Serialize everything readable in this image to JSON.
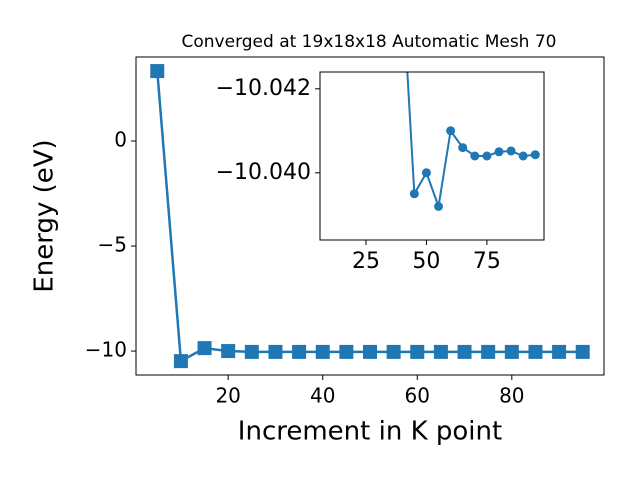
{
  "chart_data": [
    {
      "type": "line",
      "title": "Converged at 19x18x18 Automatic Mesh 70",
      "x_label": "Increment in K point",
      "y_label": "Energy (eV)",
      "x": [
        5,
        10,
        15,
        20,
        25,
        30,
        35,
        40,
        45,
        50,
        55,
        60,
        65,
        70,
        75,
        80,
        85,
        90,
        95
      ],
      "series": [
        {
          "color": "#1f77b4",
          "marker": "square",
          "values": [
            3.33,
            -10.48,
            -9.86,
            -10.0,
            -10.04,
            -10.04,
            -10.04,
            -10.04,
            -10.04,
            -10.04,
            -10.04,
            -10.04,
            -10.04,
            -10.04,
            -10.04,
            -10.04,
            -10.04,
            -10.04,
            -10.04
          ]
        }
      ],
      "xlim": [
        0.5,
        99.5
      ],
      "ylim": [
        -11.14,
        4.0
      ],
      "xticks": [
        20,
        40,
        60,
        80
      ],
      "yticks": [
        {
          "value": -10,
          "label": "−10"
        },
        {
          "value": -5,
          "label": "−5"
        },
        0
      ]
    },
    {
      "type": "line",
      "x": [
        40,
        45,
        50,
        55,
        60,
        65,
        70,
        75,
        80,
        85,
        90,
        95
      ],
      "series": [
        {
          "color": "#1f77b4",
          "marker": "circle",
          "values": [
            -10.0445,
            -10.0395,
            -10.04,
            -10.0392,
            -10.041,
            -10.0406,
            -10.0404,
            -10.0404,
            -10.0405,
            -10.04052,
            -10.0404,
            -10.04043
          ]
        }
      ],
      "xlim": [
        6,
        98.6
      ],
      "ylim": [
        -10.0384,
        -10.0424
      ],
      "xticks": [
        25,
        50,
        75
      ],
      "yticks": [
        {
          "value": -10.042,
          "label": "−10.042"
        },
        {
          "value": -10.04,
          "label": "−10.040"
        }
      ]
    }
  ]
}
